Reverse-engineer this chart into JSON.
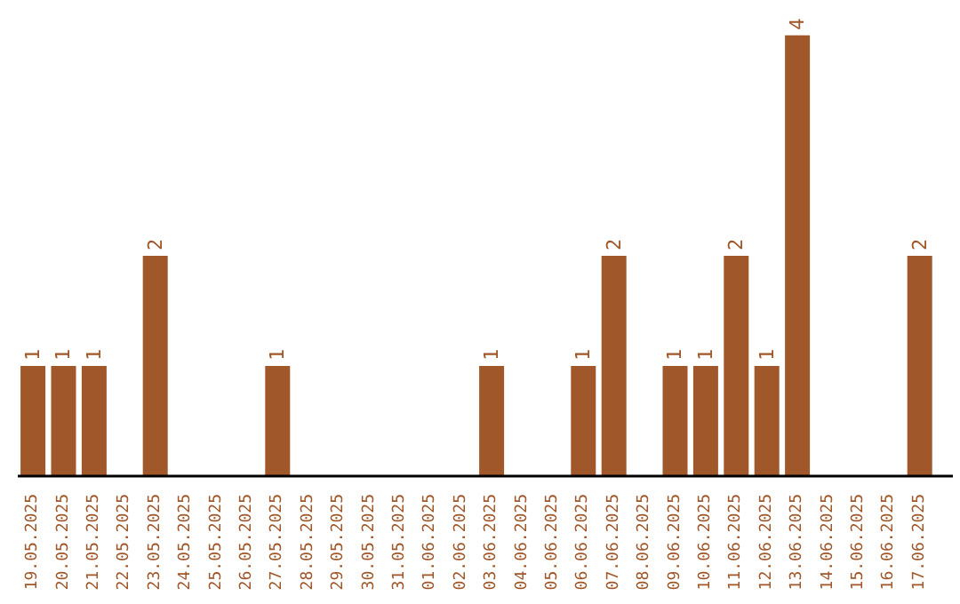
{
  "chart_data": {
    "type": "bar",
    "categories": [
      "19.05.2025",
      "20.05.2025",
      "21.05.2025",
      "22.05.2025",
      "23.05.2025",
      "24.05.2025",
      "25.05.2025",
      "26.05.2025",
      "27.05.2025",
      "28.05.2025",
      "29.05.2025",
      "30.05.2025",
      "31.05.2025",
      "01.06.2025",
      "02.06.2025",
      "03.06.2025",
      "04.06.2025",
      "05.06.2025",
      "06.06.2025",
      "07.06.2025",
      "08.06.2025",
      "09.06.2025",
      "10.06.2025",
      "11.06.2025",
      "12.06.2025",
      "13.06.2025",
      "14.06.2025",
      "15.06.2025",
      "16.06.2025",
      "17.06.2025"
    ],
    "values": [
      1,
      1,
      1,
      0,
      2,
      0,
      0,
      0,
      1,
      0,
      0,
      0,
      0,
      0,
      0,
      1,
      0,
      0,
      1,
      2,
      0,
      1,
      1,
      2,
      1,
      4,
      0,
      0,
      0,
      2
    ],
    "value_labels": [
      "1",
      "1",
      "1",
      null,
      "2",
      null,
      null,
      null,
      "1",
      null,
      null,
      null,
      null,
      null,
      null,
      "1",
      null,
      null,
      "1",
      "2",
      null,
      "1",
      "1",
      "2",
      "1",
      "4",
      null,
      null,
      null,
      "2"
    ],
    "color": "#a0572a",
    "tick_labels": "x",
    "grid": false,
    "legend": false
  }
}
